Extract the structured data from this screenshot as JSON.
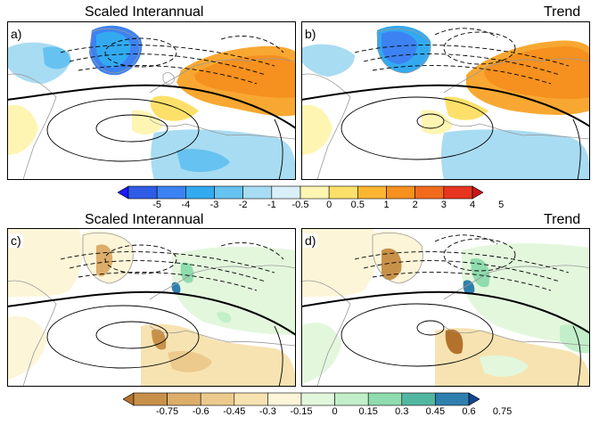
{
  "titles": {
    "top_left": "Scaled Interannual",
    "top_right": "Trend",
    "bottom_left": "Scaled Interannual",
    "bottom_right": "Trend"
  },
  "panels": [
    {
      "label": "a)"
    },
    {
      "label": "b)"
    },
    {
      "label": "c)"
    },
    {
      "label": "d)"
    }
  ],
  "colorbar_temperature": {
    "ticks": [
      "-5",
      "-4",
      "-3",
      "-2",
      "-1",
      "-0.5",
      "0",
      "0.5",
      "1",
      "2",
      "3",
      "4",
      "5"
    ],
    "colors": [
      "#1a1aff",
      "#2e5ce6",
      "#3d82f2",
      "#33aaf0",
      "#66c2f0",
      "#a8dcf2",
      "#d9f0fa",
      "#fff5b3",
      "#fde06a",
      "#fbb531",
      "#f6901e",
      "#f26a1c",
      "#e83520",
      "#c81818"
    ]
  },
  "colorbar_precip": {
    "ticks": [
      "-0.75",
      "-0.6",
      "-0.45",
      "-0.3",
      "-0.15",
      "0",
      "0.15",
      "0.3",
      "0.45",
      "0.6",
      "0.75"
    ],
    "colors": [
      "#b3722c",
      "#c8914a",
      "#dcae6a",
      "#ecca8d",
      "#f7e3b1",
      "#fcf5d8",
      "#e3f7dd",
      "#c2efc9",
      "#8fdcae",
      "#52b7a0",
      "#2f7fae",
      "#12468d"
    ]
  }
}
